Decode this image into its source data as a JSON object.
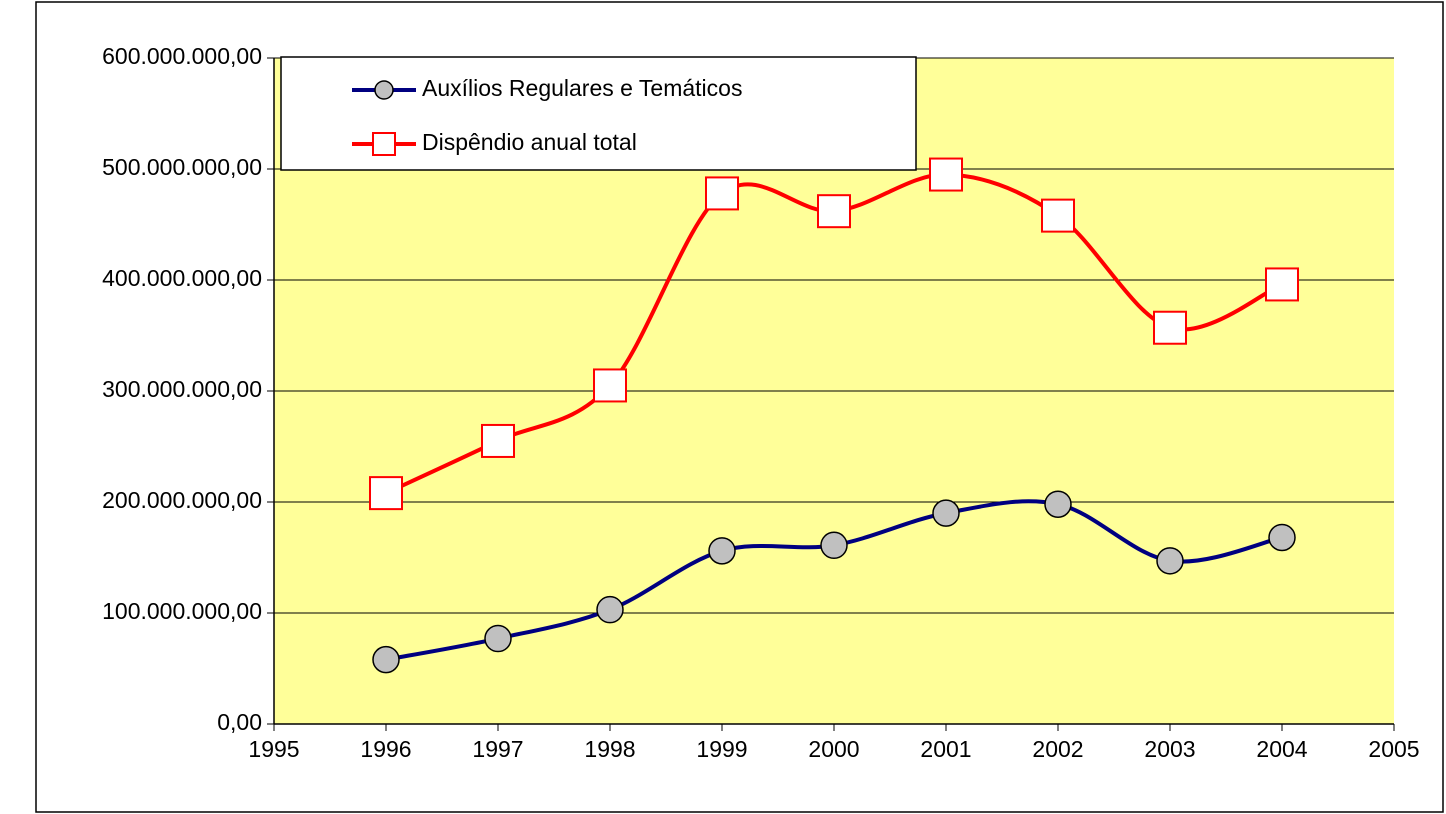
{
  "chart_data": {
    "type": "line",
    "x": [
      1996,
      1997,
      1998,
      1999,
      2000,
      2001,
      2002,
      2003,
      2004
    ],
    "series": [
      {
        "name": "Auxílios Regulares e Temáticos",
        "color": "#000080",
        "marker": "circle",
        "values": [
          58000000,
          77000000,
          103000000,
          156000000,
          161000000,
          190000000,
          198000000,
          147000000,
          168000000
        ]
      },
      {
        "name": "Dispêndio anual total",
        "color": "#ff0000",
        "marker": "square",
        "values": [
          208000000,
          255000000,
          305000000,
          478000000,
          462000000,
          495000000,
          458000000,
          357000000,
          396000000
        ]
      }
    ],
    "xlim": [
      1995,
      2005
    ],
    "xticks": [
      1995,
      1996,
      1997,
      1998,
      1999,
      2000,
      2001,
      2002,
      2003,
      2004,
      2005
    ],
    "ylim": [
      0,
      600000000
    ],
    "yticks": [
      {
        "value": 0,
        "label": "0,00"
      },
      {
        "value": 100000000,
        "label": "100.000.000,00"
      },
      {
        "value": 200000000,
        "label": "200.000.000,00"
      },
      {
        "value": 300000000,
        "label": "300.000.000,00"
      },
      {
        "value": 400000000,
        "label": "400.000.000,00"
      },
      {
        "value": 500000000,
        "label": "500.000.000,00"
      },
      {
        "value": 600000000,
        "label": "600.000.000,00"
      }
    ],
    "grid": true,
    "smooth": true,
    "plot_background": "#ffff99",
    "legend": "top-left"
  }
}
